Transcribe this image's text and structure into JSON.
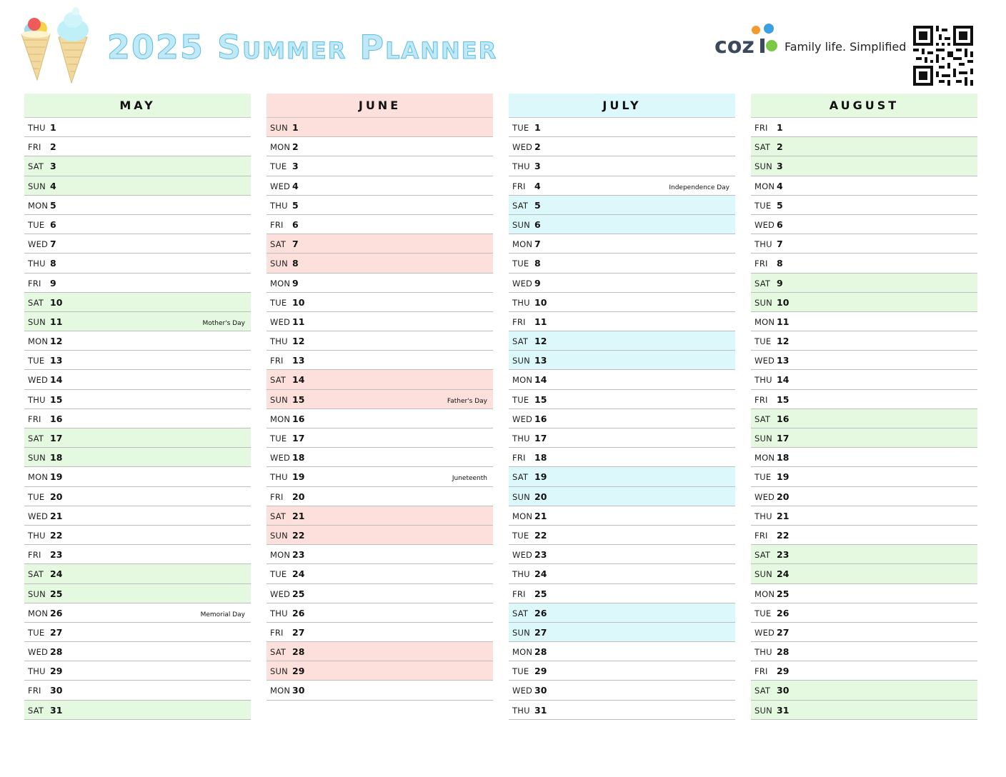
{
  "header": {
    "title": "2025 Summer Planner",
    "brand": "cozi",
    "tagline": "Family life. Simplified"
  },
  "colors": {
    "title": "#7fd3ef",
    "may": "#e5f8e0",
    "june": "#fde0dc",
    "july": "#dcf8fa",
    "august": "#e5f8e0"
  },
  "months": [
    {
      "name": "MAY",
      "days": [
        {
          "dow": "THU",
          "num": "1",
          "we": false,
          "note": ""
        },
        {
          "dow": "FRI",
          "num": "2",
          "we": false,
          "note": ""
        },
        {
          "dow": "SAT",
          "num": "3",
          "we": true,
          "note": ""
        },
        {
          "dow": "SUN",
          "num": "4",
          "we": true,
          "note": ""
        },
        {
          "dow": "MON",
          "num": "5",
          "we": false,
          "note": ""
        },
        {
          "dow": "TUE",
          "num": "6",
          "we": false,
          "note": ""
        },
        {
          "dow": "WED",
          "num": "7",
          "we": false,
          "note": ""
        },
        {
          "dow": "THU",
          "num": "8",
          "we": false,
          "note": ""
        },
        {
          "dow": "FRI",
          "num": "9",
          "we": false,
          "note": ""
        },
        {
          "dow": "SAT",
          "num": "10",
          "we": true,
          "note": ""
        },
        {
          "dow": "SUN",
          "num": "11",
          "we": true,
          "note": "Mother's Day"
        },
        {
          "dow": "MON",
          "num": "12",
          "we": false,
          "note": ""
        },
        {
          "dow": "TUE",
          "num": "13",
          "we": false,
          "note": ""
        },
        {
          "dow": "WED",
          "num": "14",
          "we": false,
          "note": ""
        },
        {
          "dow": "THU",
          "num": "15",
          "we": false,
          "note": ""
        },
        {
          "dow": "FRI",
          "num": "16",
          "we": false,
          "note": ""
        },
        {
          "dow": "SAT",
          "num": "17",
          "we": true,
          "note": ""
        },
        {
          "dow": "SUN",
          "num": "18",
          "we": true,
          "note": ""
        },
        {
          "dow": "MON",
          "num": "19",
          "we": false,
          "note": ""
        },
        {
          "dow": "TUE",
          "num": "20",
          "we": false,
          "note": ""
        },
        {
          "dow": "WED",
          "num": "21",
          "we": false,
          "note": ""
        },
        {
          "dow": "THU",
          "num": "22",
          "we": false,
          "note": ""
        },
        {
          "dow": "FRI",
          "num": "23",
          "we": false,
          "note": ""
        },
        {
          "dow": "SAT",
          "num": "24",
          "we": true,
          "note": ""
        },
        {
          "dow": "SUN",
          "num": "25",
          "we": true,
          "note": ""
        },
        {
          "dow": "MON",
          "num": "26",
          "we": false,
          "note": "Memorial Day"
        },
        {
          "dow": "TUE",
          "num": "27",
          "we": false,
          "note": ""
        },
        {
          "dow": "WED",
          "num": "28",
          "we": false,
          "note": ""
        },
        {
          "dow": "THU",
          "num": "29",
          "we": false,
          "note": ""
        },
        {
          "dow": "FRI",
          "num": "30",
          "we": false,
          "note": ""
        },
        {
          "dow": "SAT",
          "num": "31",
          "we": true,
          "note": ""
        }
      ]
    },
    {
      "name": "JUNE",
      "days": [
        {
          "dow": "SUN",
          "num": "1",
          "we": true,
          "note": ""
        },
        {
          "dow": "MON",
          "num": "2",
          "we": false,
          "note": ""
        },
        {
          "dow": "TUE",
          "num": "3",
          "we": false,
          "note": ""
        },
        {
          "dow": "WED",
          "num": "4",
          "we": false,
          "note": ""
        },
        {
          "dow": "THU",
          "num": "5",
          "we": false,
          "note": ""
        },
        {
          "dow": "FRI",
          "num": "6",
          "we": false,
          "note": ""
        },
        {
          "dow": "SAT",
          "num": "7",
          "we": true,
          "note": ""
        },
        {
          "dow": "SUN",
          "num": "8",
          "we": true,
          "note": ""
        },
        {
          "dow": "MON",
          "num": "9",
          "we": false,
          "note": ""
        },
        {
          "dow": "TUE",
          "num": "10",
          "we": false,
          "note": ""
        },
        {
          "dow": "WED",
          "num": "11",
          "we": false,
          "note": ""
        },
        {
          "dow": "THU",
          "num": "12",
          "we": false,
          "note": ""
        },
        {
          "dow": "FRI",
          "num": "13",
          "we": false,
          "note": ""
        },
        {
          "dow": "SAT",
          "num": "14",
          "we": true,
          "note": ""
        },
        {
          "dow": "SUN",
          "num": "15",
          "we": true,
          "note": "Father's Day"
        },
        {
          "dow": "MON",
          "num": "16",
          "we": false,
          "note": ""
        },
        {
          "dow": "TUE",
          "num": "17",
          "we": false,
          "note": ""
        },
        {
          "dow": "WED",
          "num": "18",
          "we": false,
          "note": ""
        },
        {
          "dow": "THU",
          "num": "19",
          "we": false,
          "note": "Juneteenth"
        },
        {
          "dow": "FRI",
          "num": "20",
          "we": false,
          "note": ""
        },
        {
          "dow": "SAT",
          "num": "21",
          "we": true,
          "note": ""
        },
        {
          "dow": "SUN",
          "num": "22",
          "we": true,
          "note": ""
        },
        {
          "dow": "MON",
          "num": "23",
          "we": false,
          "note": ""
        },
        {
          "dow": "TUE",
          "num": "24",
          "we": false,
          "note": ""
        },
        {
          "dow": "WED",
          "num": "25",
          "we": false,
          "note": ""
        },
        {
          "dow": "THU",
          "num": "26",
          "we": false,
          "note": ""
        },
        {
          "dow": "FRI",
          "num": "27",
          "we": false,
          "note": ""
        },
        {
          "dow": "SAT",
          "num": "28",
          "we": true,
          "note": ""
        },
        {
          "dow": "SUN",
          "num": "29",
          "we": true,
          "note": ""
        },
        {
          "dow": "MON",
          "num": "30",
          "we": false,
          "note": ""
        }
      ]
    },
    {
      "name": "JULY",
      "days": [
        {
          "dow": "TUE",
          "num": "1",
          "we": false,
          "note": ""
        },
        {
          "dow": "WED",
          "num": "2",
          "we": false,
          "note": ""
        },
        {
          "dow": "THU",
          "num": "3",
          "we": false,
          "note": ""
        },
        {
          "dow": "FRI",
          "num": "4",
          "we": false,
          "note": "Independence Day"
        },
        {
          "dow": "SAT",
          "num": "5",
          "we": true,
          "note": ""
        },
        {
          "dow": "SUN",
          "num": "6",
          "we": true,
          "note": ""
        },
        {
          "dow": "MON",
          "num": "7",
          "we": false,
          "note": ""
        },
        {
          "dow": "TUE",
          "num": "8",
          "we": false,
          "note": ""
        },
        {
          "dow": "WED",
          "num": "9",
          "we": false,
          "note": ""
        },
        {
          "dow": "THU",
          "num": "10",
          "we": false,
          "note": ""
        },
        {
          "dow": "FRI",
          "num": "11",
          "we": false,
          "note": ""
        },
        {
          "dow": "SAT",
          "num": "12",
          "we": true,
          "note": ""
        },
        {
          "dow": "SUN",
          "num": "13",
          "we": true,
          "note": ""
        },
        {
          "dow": "MON",
          "num": "14",
          "we": false,
          "note": ""
        },
        {
          "dow": "TUE",
          "num": "15",
          "we": false,
          "note": ""
        },
        {
          "dow": "WED",
          "num": "16",
          "we": false,
          "note": ""
        },
        {
          "dow": "THU",
          "num": "17",
          "we": false,
          "note": ""
        },
        {
          "dow": "FRI",
          "num": "18",
          "we": false,
          "note": ""
        },
        {
          "dow": "SAT",
          "num": "19",
          "we": true,
          "note": ""
        },
        {
          "dow": "SUN",
          "num": "20",
          "we": true,
          "note": ""
        },
        {
          "dow": "MON",
          "num": "21",
          "we": false,
          "note": ""
        },
        {
          "dow": "TUE",
          "num": "22",
          "we": false,
          "note": ""
        },
        {
          "dow": "WED",
          "num": "23",
          "we": false,
          "note": ""
        },
        {
          "dow": "THU",
          "num": "24",
          "we": false,
          "note": ""
        },
        {
          "dow": "FRI",
          "num": "25",
          "we": false,
          "note": ""
        },
        {
          "dow": "SAT",
          "num": "26",
          "we": true,
          "note": ""
        },
        {
          "dow": "SUN",
          "num": "27",
          "we": true,
          "note": ""
        },
        {
          "dow": "MON",
          "num": "28",
          "we": false,
          "note": ""
        },
        {
          "dow": "TUE",
          "num": "29",
          "we": false,
          "note": ""
        },
        {
          "dow": "WED",
          "num": "30",
          "we": false,
          "note": ""
        },
        {
          "dow": "THU",
          "num": "31",
          "we": false,
          "note": ""
        }
      ]
    },
    {
      "name": "AUGUST",
      "days": [
        {
          "dow": "FRI",
          "num": "1",
          "we": false,
          "note": ""
        },
        {
          "dow": "SAT",
          "num": "2",
          "we": true,
          "note": ""
        },
        {
          "dow": "SUN",
          "num": "3",
          "we": true,
          "note": ""
        },
        {
          "dow": "MON",
          "num": "4",
          "we": false,
          "note": ""
        },
        {
          "dow": "TUE",
          "num": "5",
          "we": false,
          "note": ""
        },
        {
          "dow": "WED",
          "num": "6",
          "we": false,
          "note": ""
        },
        {
          "dow": "THU",
          "num": "7",
          "we": false,
          "note": ""
        },
        {
          "dow": "FRI",
          "num": "8",
          "we": false,
          "note": ""
        },
        {
          "dow": "SAT",
          "num": "9",
          "we": true,
          "note": ""
        },
        {
          "dow": "SUN",
          "num": "10",
          "we": true,
          "note": ""
        },
        {
          "dow": "MON",
          "num": "11",
          "we": false,
          "note": ""
        },
        {
          "dow": "TUE",
          "num": "12",
          "we": false,
          "note": ""
        },
        {
          "dow": "WED",
          "num": "13",
          "we": false,
          "note": ""
        },
        {
          "dow": "THU",
          "num": "14",
          "we": false,
          "note": ""
        },
        {
          "dow": "FRI",
          "num": "15",
          "we": false,
          "note": ""
        },
        {
          "dow": "SAT",
          "num": "16",
          "we": true,
          "note": ""
        },
        {
          "dow": "SUN",
          "num": "17",
          "we": true,
          "note": ""
        },
        {
          "dow": "MON",
          "num": "18",
          "we": false,
          "note": ""
        },
        {
          "dow": "TUE",
          "num": "19",
          "we": false,
          "note": ""
        },
        {
          "dow": "WED",
          "num": "20",
          "we": false,
          "note": ""
        },
        {
          "dow": "THU",
          "num": "21",
          "we": false,
          "note": ""
        },
        {
          "dow": "FRI",
          "num": "22",
          "we": false,
          "note": ""
        },
        {
          "dow": "SAT",
          "num": "23",
          "we": true,
          "note": ""
        },
        {
          "dow": "SUN",
          "num": "24",
          "we": true,
          "note": ""
        },
        {
          "dow": "MON",
          "num": "25",
          "we": false,
          "note": ""
        },
        {
          "dow": "TUE",
          "num": "26",
          "we": false,
          "note": ""
        },
        {
          "dow": "WED",
          "num": "27",
          "we": false,
          "note": ""
        },
        {
          "dow": "THU",
          "num": "28",
          "we": false,
          "note": ""
        },
        {
          "dow": "FRI",
          "num": "29",
          "we": false,
          "note": ""
        },
        {
          "dow": "SAT",
          "num": "30",
          "we": true,
          "note": ""
        },
        {
          "dow": "SUN",
          "num": "31",
          "we": true,
          "note": ""
        }
      ]
    }
  ]
}
